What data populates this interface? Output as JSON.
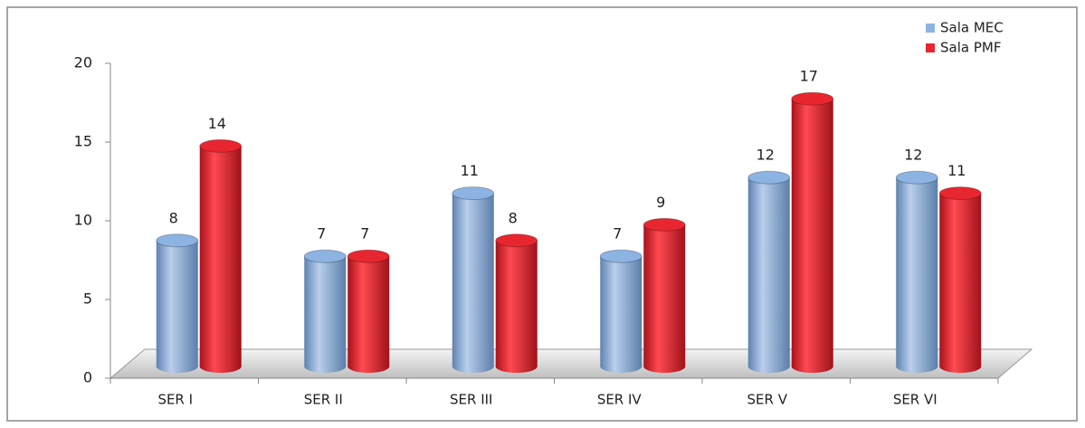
{
  "chart_data": {
    "type": "bar",
    "categories": [
      "SER I",
      "SER II",
      "SER III",
      "SER IV",
      "SER V",
      "SER VI"
    ],
    "series": [
      {
        "name": "Sala MEC",
        "color": "#8db3e2",
        "values": [
          8,
          7,
          11,
          7,
          12,
          12
        ]
      },
      {
        "name": "Sala PMF",
        "color": "#e8262f",
        "values": [
          14,
          7,
          8,
          9,
          17,
          11
        ]
      }
    ],
    "ylim": [
      0,
      20
    ],
    "yticks": [
      0,
      5,
      10,
      15,
      20
    ],
    "legend": "top-right",
    "data_labels": true
  }
}
